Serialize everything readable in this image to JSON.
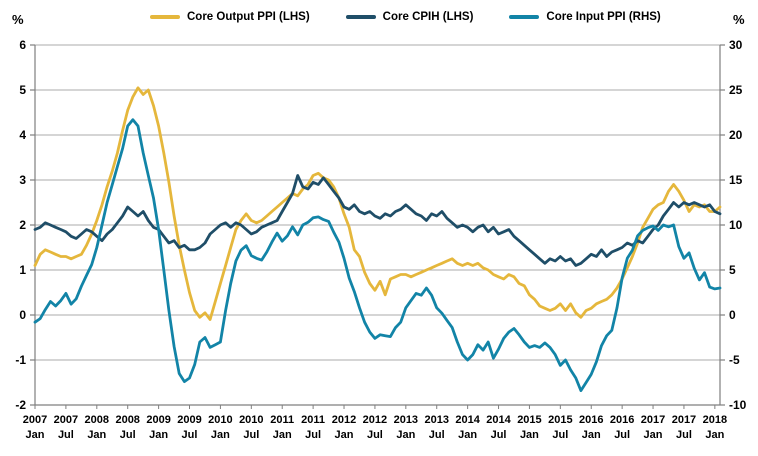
{
  "page": {
    "left_axis_unit": "%",
    "right_axis_unit": "%"
  },
  "legend": [
    {
      "label": "Core Output PPI (LHS)",
      "color": "#E5B73C"
    },
    {
      "label": "Core CPIH (LHS)",
      "color": "#1F4E68"
    },
    {
      "label": "Core Input PPI (RHS)",
      "color": "#1284A7"
    }
  ],
  "chart_data": {
    "type": "line",
    "title": "",
    "frequency": "monthly",
    "x_start": "2007 Jan",
    "x_end": "2018 Feb",
    "grid": "horizontal only",
    "left_axis": {
      "label": "%",
      "min": -2,
      "max": 6,
      "step": 1,
      "ticks": [
        6,
        5,
        4,
        3,
        2,
        1,
        0,
        -1,
        -2
      ]
    },
    "right_axis": {
      "label": "%",
      "min": -10,
      "max": 30,
      "step": 5,
      "ticks": [
        30,
        25,
        20,
        15,
        10,
        5,
        0,
        -5,
        -10
      ]
    },
    "x_ticks": [
      {
        "year": "2007",
        "month": "Jan"
      },
      {
        "year": "2007",
        "month": "Jul"
      },
      {
        "year": "2008",
        "month": "Jan"
      },
      {
        "year": "2008",
        "month": "Jul"
      },
      {
        "year": "2009",
        "month": "Jan"
      },
      {
        "year": "2009",
        "month": "Jul"
      },
      {
        "year": "2010",
        "month": "Jan"
      },
      {
        "year": "2010",
        "month": "Jul"
      },
      {
        "year": "2011",
        "month": "Jan"
      },
      {
        "year": "2011",
        "month": "Jul"
      },
      {
        "year": "2012",
        "month": "Jan"
      },
      {
        "year": "2012",
        "month": "Jul"
      },
      {
        "year": "2013",
        "month": "Jan"
      },
      {
        "year": "2013",
        "month": "Jul"
      },
      {
        "year": "2014",
        "month": "Jan"
      },
      {
        "year": "2014",
        "month": "Jul"
      },
      {
        "year": "2015",
        "month": "Jan"
      },
      {
        "year": "2015",
        "month": "Jul"
      },
      {
        "year": "2016",
        "month": "Jan"
      },
      {
        "year": "2016",
        "month": "Jul"
      },
      {
        "year": "2017",
        "month": "Jan"
      },
      {
        "year": "2017",
        "month": "Jul"
      },
      {
        "year": "2018",
        "month": "Jan"
      }
    ],
    "series": [
      {
        "name": "Core Output PPI (LHS)",
        "axis": "left",
        "color": "#E5B73C",
        "values": [
          1.1,
          1.35,
          1.45,
          1.4,
          1.35,
          1.3,
          1.3,
          1.25,
          1.3,
          1.35,
          1.55,
          1.8,
          2.1,
          2.45,
          2.85,
          3.2,
          3.6,
          4.1,
          4.55,
          4.85,
          5.05,
          4.9,
          5.0,
          4.65,
          4.2,
          3.6,
          2.95,
          2.2,
          1.55,
          1.0,
          0.5,
          0.1,
          -0.05,
          0.05,
          -0.1,
          0.3,
          0.7,
          1.1,
          1.5,
          1.9,
          2.1,
          2.25,
          2.1,
          2.05,
          2.1,
          2.2,
          2.3,
          2.4,
          2.5,
          2.6,
          2.7,
          2.65,
          2.8,
          2.9,
          3.1,
          3.15,
          3.05,
          3.0,
          2.85,
          2.6,
          2.25,
          1.95,
          1.45,
          1.3,
          0.95,
          0.7,
          0.55,
          0.75,
          0.45,
          0.8,
          0.85,
          0.9,
          0.9,
          0.85,
          0.9,
          0.95,
          1.0,
          1.05,
          1.1,
          1.15,
          1.2,
          1.25,
          1.15,
          1.1,
          1.15,
          1.1,
          1.15,
          1.05,
          1.0,
          0.9,
          0.85,
          0.8,
          0.9,
          0.85,
          0.7,
          0.65,
          0.45,
          0.35,
          0.2,
          0.15,
          0.1,
          0.15,
          0.25,
          0.1,
          0.25,
          0.05,
          -0.05,
          0.1,
          0.15,
          0.25,
          0.3,
          0.35,
          0.45,
          0.6,
          0.8,
          1.05,
          1.3,
          1.6,
          1.95,
          2.15,
          2.35,
          2.45,
          2.5,
          2.75,
          2.9,
          2.75,
          2.55,
          2.3,
          2.45,
          2.4,
          2.45,
          2.3,
          2.3,
          2.4
        ]
      },
      {
        "name": "Core CPIH (LHS)",
        "axis": "left",
        "color": "#1F4E68",
        "values": [
          1.9,
          1.95,
          2.05,
          2.0,
          1.95,
          1.9,
          1.85,
          1.75,
          1.7,
          1.8,
          1.9,
          1.85,
          1.75,
          1.65,
          1.8,
          1.9,
          2.05,
          2.2,
          2.4,
          2.3,
          2.2,
          2.3,
          2.1,
          1.95,
          1.9,
          1.75,
          1.6,
          1.65,
          1.5,
          1.55,
          1.45,
          1.45,
          1.5,
          1.6,
          1.8,
          1.9,
          2.0,
          2.05,
          1.95,
          2.05,
          2.0,
          1.9,
          1.8,
          1.85,
          1.95,
          2.0,
          2.05,
          2.1,
          2.3,
          2.5,
          2.7,
          3.1,
          2.85,
          2.8,
          2.95,
          2.9,
          3.05,
          2.9,
          2.75,
          2.6,
          2.4,
          2.35,
          2.45,
          2.3,
          2.25,
          2.3,
          2.2,
          2.15,
          2.25,
          2.2,
          2.3,
          2.35,
          2.45,
          2.35,
          2.25,
          2.2,
          2.1,
          2.25,
          2.2,
          2.3,
          2.15,
          2.05,
          1.95,
          2.0,
          1.95,
          1.85,
          1.95,
          2.0,
          1.85,
          1.95,
          1.8,
          1.85,
          1.9,
          1.75,
          1.65,
          1.55,
          1.45,
          1.35,
          1.25,
          1.15,
          1.25,
          1.2,
          1.3,
          1.2,
          1.25,
          1.1,
          1.15,
          1.25,
          1.35,
          1.3,
          1.45,
          1.3,
          1.4,
          1.45,
          1.5,
          1.6,
          1.55,
          1.65,
          1.6,
          1.75,
          1.9,
          2.0,
          2.2,
          2.35,
          2.5,
          2.4,
          2.5,
          2.45,
          2.5,
          2.45,
          2.4,
          2.45,
          2.3,
          2.25
        ]
      },
      {
        "name": "Core Input PPI (RHS)",
        "axis": "right",
        "color": "#1284A7",
        "values": [
          -0.8,
          -0.4,
          0.6,
          1.5,
          1.0,
          1.6,
          2.4,
          1.2,
          1.8,
          3.2,
          4.4,
          5.6,
          7.5,
          10.0,
          12.5,
          14.5,
          16.5,
          18.5,
          21.0,
          21.7,
          21.0,
          18.0,
          15.5,
          13.0,
          9.5,
          5.0,
          0.5,
          -3.5,
          -6.5,
          -7.4,
          -7.0,
          -5.5,
          -3.0,
          -2.5,
          -3.6,
          -3.3,
          -3.0,
          0.5,
          3.5,
          6.0,
          7.2,
          7.7,
          6.6,
          6.3,
          6.1,
          7.0,
          8.1,
          9.1,
          8.2,
          8.8,
          9.8,
          8.9,
          10.0,
          10.3,
          10.8,
          10.9,
          10.6,
          10.4,
          9.2,
          8.1,
          6.3,
          4.1,
          2.6,
          0.8,
          -0.8,
          -1.9,
          -2.6,
          -2.2,
          -2.3,
          -2.4,
          -1.4,
          -0.8,
          0.8,
          1.6,
          2.4,
          2.2,
          3.0,
          2.2,
          0.8,
          0.2,
          -0.6,
          -1.4,
          -3.0,
          -4.4,
          -5.0,
          -4.4,
          -3.3,
          -3.9,
          -3.0,
          -4.8,
          -3.8,
          -2.6,
          -1.9,
          -1.5,
          -2.2,
          -3.0,
          -3.6,
          -3.4,
          -3.6,
          -3.1,
          -3.6,
          -4.4,
          -5.6,
          -5.0,
          -6.1,
          -7.0,
          -8.4,
          -7.5,
          -6.6,
          -5.2,
          -3.4,
          -2.3,
          -1.7,
          0.8,
          4.1,
          6.3,
          7.2,
          8.8,
          9.4,
          9.7,
          9.9,
          9.4,
          10.0,
          9.8,
          10.0,
          7.6,
          6.3,
          6.9,
          5.2,
          3.9,
          4.7,
          3.1,
          2.9,
          3.0
        ]
      }
    ],
    "style": {
      "grid_color": "#ABABAB",
      "axis_color": "#7F7F7F",
      "background": "#FFFFFF",
      "line_width": 2.8
    }
  }
}
